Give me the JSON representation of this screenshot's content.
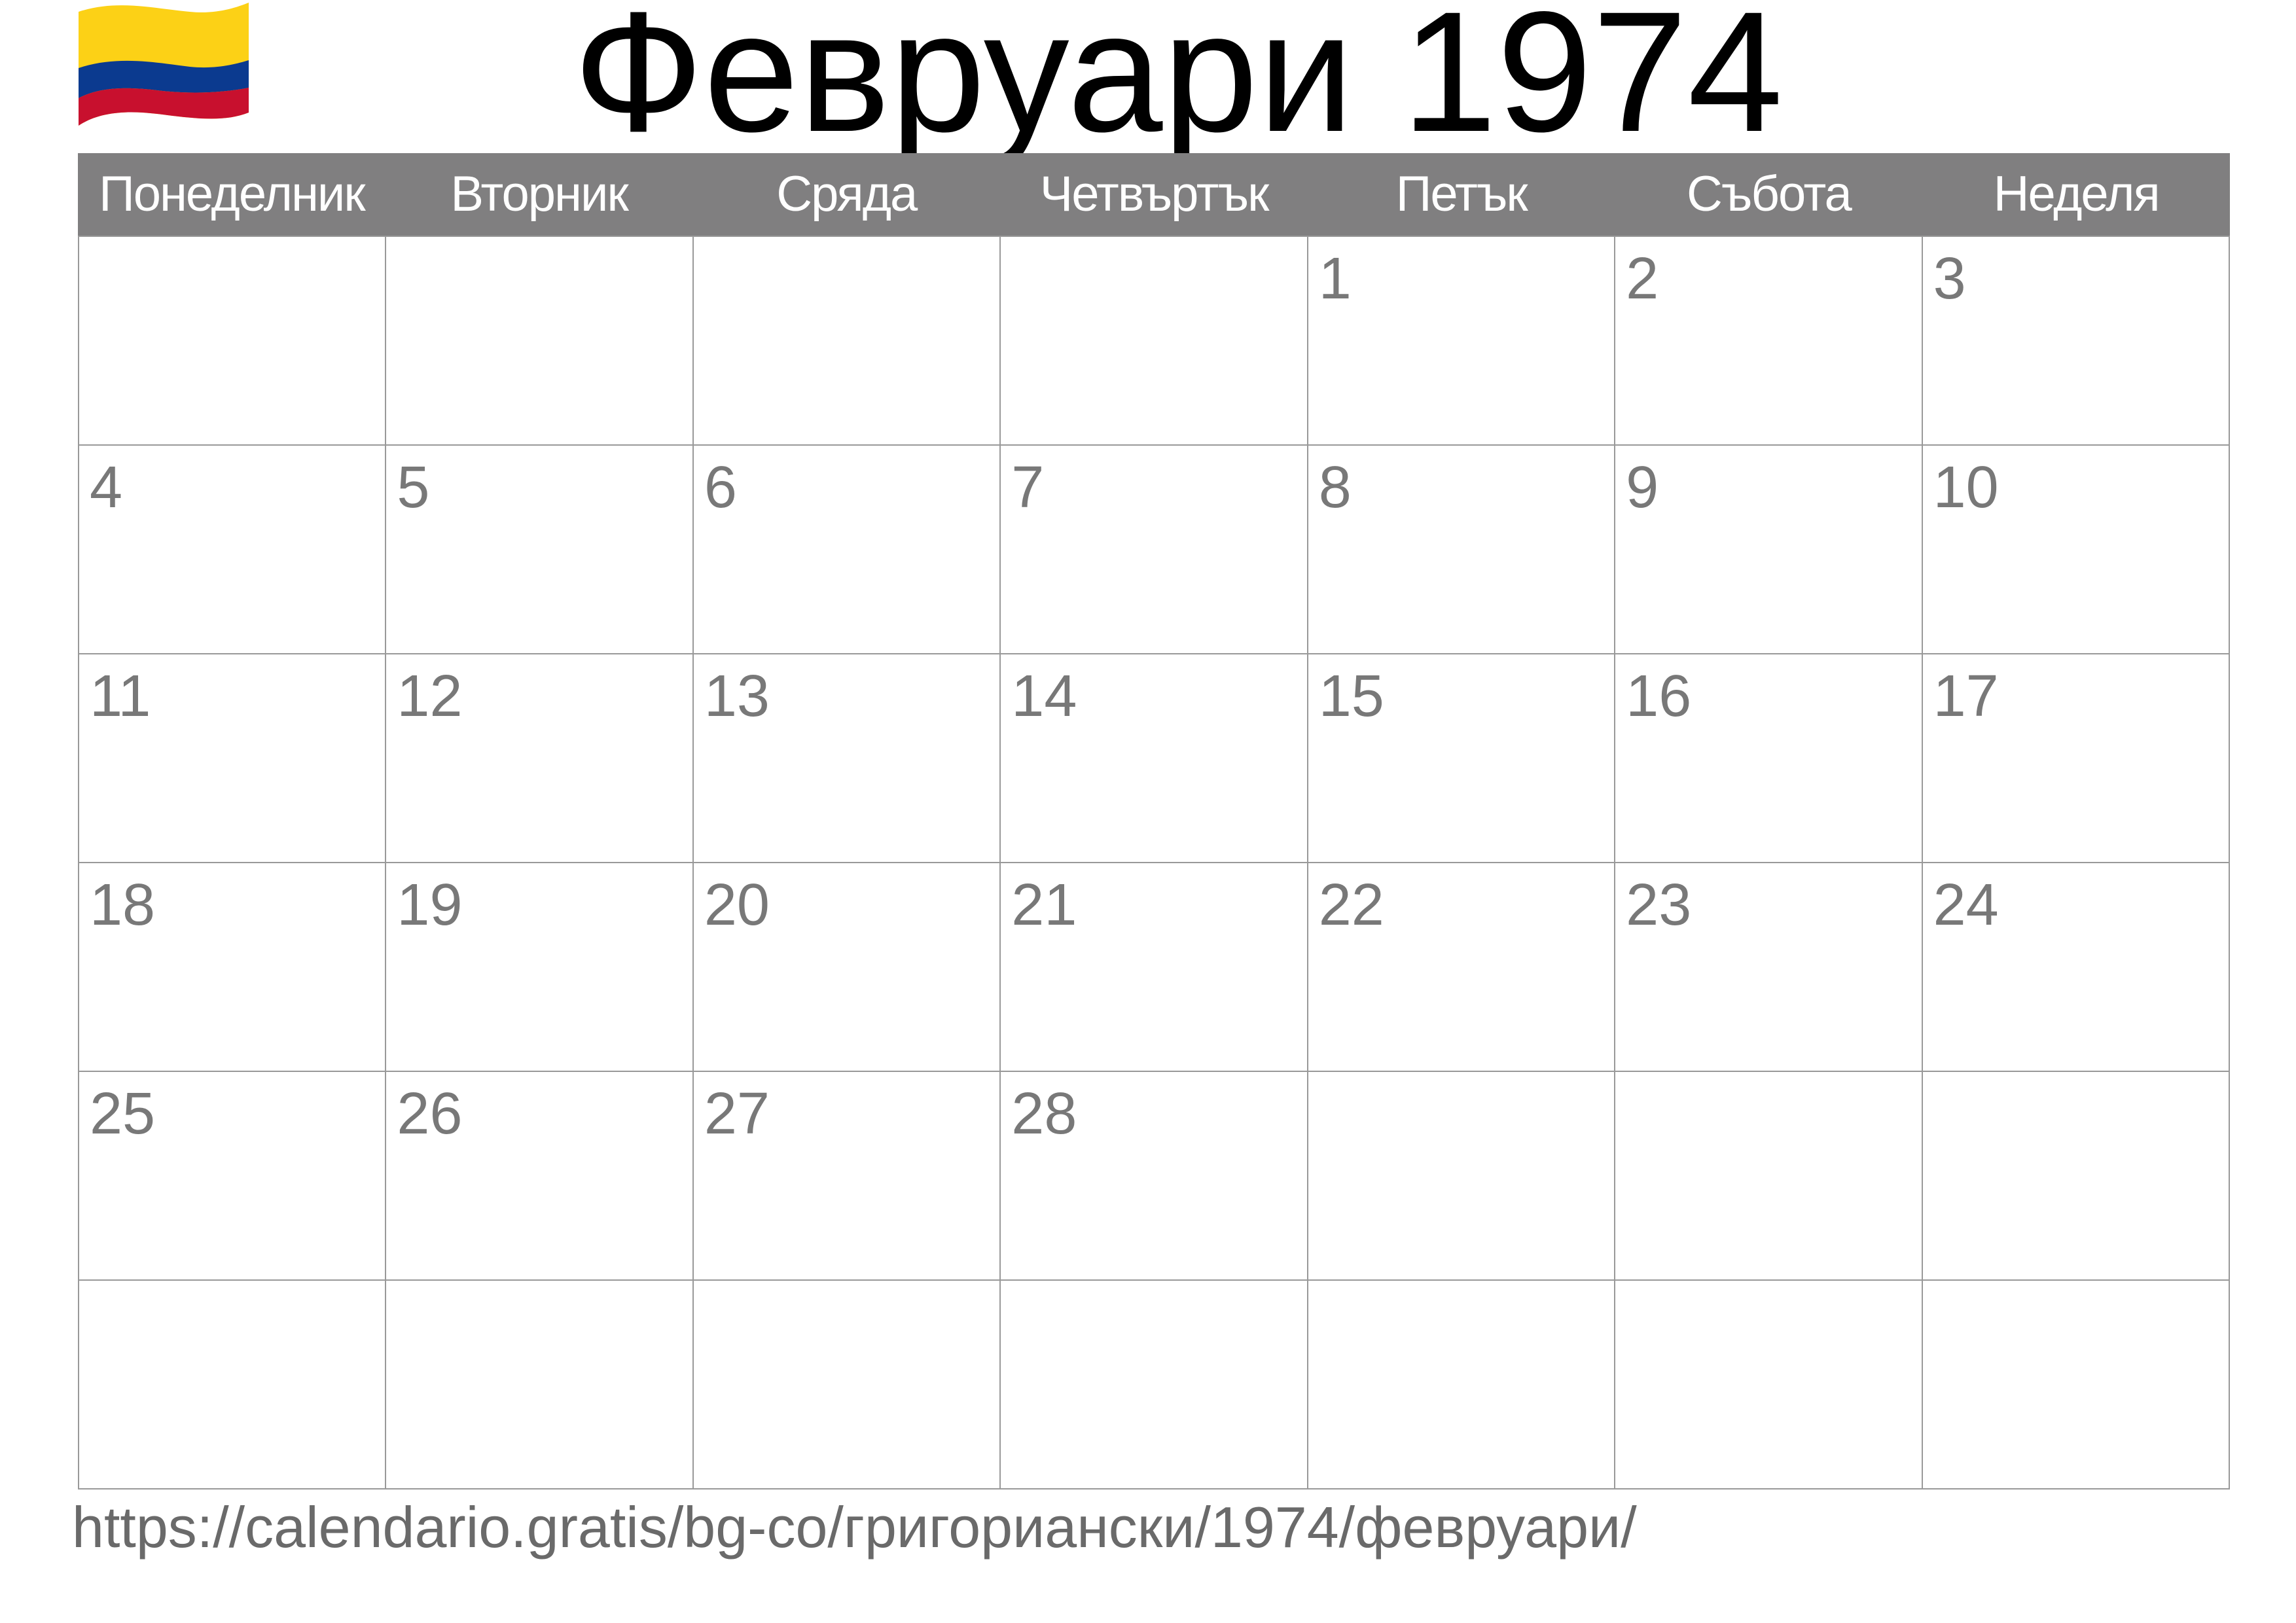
{
  "title": "Февруари 1974",
  "flag": {
    "name": "colombia-flag",
    "colors": [
      "#FCD116",
      "#003893",
      "#CE1126"
    ]
  },
  "weekdays": [
    "Понеделник",
    "Вторник",
    "Сряда",
    "Четвъртък",
    "Петък",
    "Събота",
    "Неделя"
  ],
  "weeks": [
    [
      "",
      "",
      "",
      "",
      "1",
      "2",
      "3"
    ],
    [
      "4",
      "5",
      "6",
      "7",
      "8",
      "9",
      "10"
    ],
    [
      "11",
      "12",
      "13",
      "14",
      "15",
      "16",
      "17"
    ],
    [
      "18",
      "19",
      "20",
      "21",
      "22",
      "23",
      "24"
    ],
    [
      "25",
      "26",
      "27",
      "28",
      "",
      "",
      ""
    ],
    [
      "",
      "",
      "",
      "",
      "",
      "",
      ""
    ]
  ],
  "url": "https://calendario.gratis/bg-co/григориански/1974/февруари/"
}
